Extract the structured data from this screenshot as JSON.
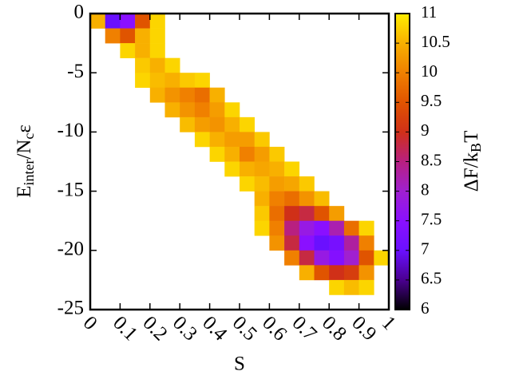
{
  "chart_data": {
    "type": "heatmap",
    "xlabel": "S",
    "ylabel": [
      "E",
      "inter",
      "/N",
      "c",
      "ε"
    ],
    "zlabel": [
      "ΔF/k",
      "B",
      "T"
    ],
    "x": [
      0.025,
      0.075,
      0.125,
      0.175,
      0.225,
      0.275,
      0.325,
      0.375,
      0.425,
      0.475,
      0.525,
      0.575,
      0.625,
      0.675,
      0.725,
      0.775,
      0.825,
      0.875,
      0.925,
      0.975
    ],
    "y": [
      -0.625,
      -1.875,
      -3.125,
      -4.375,
      -5.625,
      -6.875,
      -8.125,
      -9.375,
      -10.625,
      -11.875,
      -13.125,
      -14.375,
      -15.625,
      -16.875,
      -18.125,
      -19.375,
      -20.625,
      -21.875,
      -23.125
    ],
    "z": [
      [
        10.5,
        7,
        7.5,
        9.5,
        10.8,
        null,
        null,
        null,
        null,
        null,
        null,
        null,
        null,
        null,
        null,
        null,
        null,
        null,
        null,
        null
      ],
      [
        null,
        10,
        9.5,
        10.5,
        10.8,
        null,
        null,
        null,
        null,
        null,
        null,
        null,
        null,
        null,
        null,
        null,
        null,
        null,
        null,
        null
      ],
      [
        null,
        null,
        10.8,
        10.5,
        10.8,
        null,
        null,
        null,
        null,
        null,
        null,
        null,
        null,
        null,
        null,
        null,
        null,
        null,
        null,
        null
      ],
      [
        null,
        null,
        null,
        10.7,
        10.5,
        10.8,
        null,
        null,
        null,
        null,
        null,
        null,
        null,
        null,
        null,
        null,
        null,
        null,
        null,
        null
      ],
      [
        null,
        null,
        null,
        10.8,
        10.6,
        10.5,
        10.7,
        10.8,
        null,
        null,
        null,
        null,
        null,
        null,
        null,
        null,
        null,
        null,
        null,
        null
      ],
      [
        null,
        null,
        null,
        null,
        10.5,
        10.2,
        10,
        9.8,
        10.5,
        null,
        null,
        null,
        null,
        null,
        null,
        null,
        null,
        null,
        null,
        null
      ],
      [
        null,
        null,
        null,
        null,
        null,
        10.5,
        10.2,
        10,
        10.3,
        10.8,
        null,
        null,
        null,
        null,
        null,
        null,
        null,
        null,
        null,
        null
      ],
      [
        null,
        null,
        null,
        null,
        null,
        null,
        10.6,
        10.3,
        10.2,
        10.5,
        10.8,
        null,
        null,
        null,
        null,
        null,
        null,
        null,
        null,
        null
      ],
      [
        null,
        null,
        null,
        null,
        null,
        null,
        null,
        10.8,
        10.5,
        10.3,
        10.3,
        10.7,
        null,
        null,
        null,
        null,
        null,
        null,
        null,
        null
      ],
      [
        null,
        null,
        null,
        null,
        null,
        null,
        null,
        null,
        10.8,
        10.5,
        10,
        10.3,
        10.7,
        null,
        null,
        null,
        null,
        null,
        null,
        null
      ],
      [
        null,
        null,
        null,
        null,
        null,
        null,
        null,
        null,
        null,
        10.8,
        10.5,
        10.4,
        10.5,
        10.8,
        null,
        null,
        null,
        null,
        null,
        null
      ],
      [
        null,
        null,
        null,
        null,
        null,
        null,
        null,
        null,
        null,
        null,
        10.8,
        10.6,
        10.3,
        10.4,
        10.7,
        null,
        null,
        null,
        null,
        null
      ],
      [
        null,
        null,
        null,
        null,
        null,
        null,
        null,
        null,
        null,
        null,
        null,
        10.5,
        10,
        9.8,
        10.2,
        10.6,
        null,
        null,
        null,
        null
      ],
      [
        null,
        null,
        null,
        null,
        null,
        null,
        null,
        null,
        null,
        null,
        null,
        10.7,
        9.8,
        9,
        8.8,
        9.5,
        10.3,
        null,
        null,
        null
      ],
      [
        null,
        null,
        null,
        null,
        null,
        null,
        null,
        null,
        null,
        null,
        null,
        10.8,
        10,
        8.5,
        7.8,
        7.5,
        8.2,
        9.8,
        10.8,
        null
      ],
      [
        null,
        null,
        null,
        null,
        null,
        null,
        null,
        null,
        null,
        null,
        null,
        null,
        10.2,
        8.8,
        7.5,
        7,
        7.2,
        8.3,
        10,
        null
      ],
      [
        null,
        null,
        null,
        null,
        null,
        null,
        null,
        null,
        null,
        null,
        null,
        null,
        null,
        10,
        8.8,
        7.8,
        7.4,
        8,
        9.5,
        10.8
      ],
      [
        null,
        null,
        null,
        null,
        null,
        null,
        null,
        null,
        null,
        null,
        null,
        null,
        null,
        null,
        10.5,
        9.5,
        9,
        9.2,
        10.2,
        null
      ],
      [
        null,
        null,
        null,
        null,
        null,
        null,
        null,
        null,
        null,
        null,
        null,
        null,
        null,
        null,
        null,
        null,
        10.8,
        10.6,
        10.8,
        null
      ]
    ],
    "xlim": [
      0,
      1
    ],
    "xticks": [
      0,
      0.1,
      0.2,
      0.3,
      0.4,
      0.5,
      0.6,
      0.7,
      0.8,
      0.9,
      1
    ],
    "ylim": [
      -25,
      0
    ],
    "yticks": [
      0,
      -5,
      -10,
      -15,
      -20,
      -25
    ],
    "zlim": [
      6,
      11
    ],
    "zticks": [
      6,
      6.5,
      7,
      7.5,
      8,
      8.5,
      9,
      9.5,
      10,
      10.5,
      11
    ],
    "colorscale": [
      "#000000",
      "#4a0090",
      "#6a10ff",
      "#8a10ff",
      "#a020d0",
      "#b82080",
      "#d03018",
      "#e05400",
      "#f08000",
      "#f8b000",
      "#ffee00"
    ]
  }
}
